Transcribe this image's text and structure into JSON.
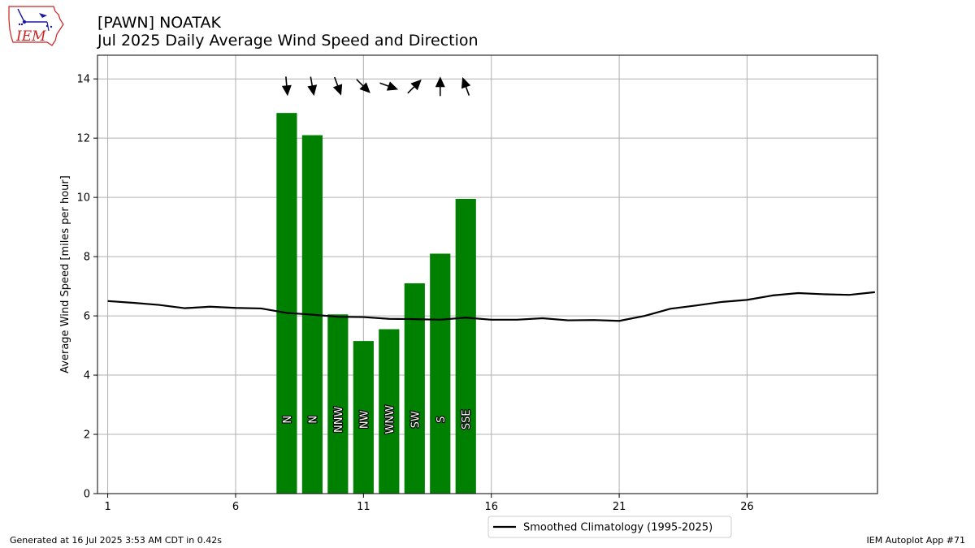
{
  "header": {
    "title_line1": "[PAWN] NOATAK",
    "title_line2": "Jul 2025 Daily Average Wind Speed and Direction"
  },
  "logo": {
    "text": "IEM"
  },
  "footer": {
    "generated": "Generated at 16 Jul 2025 3:53 AM CDT in 0.42s",
    "app": "IEM Autoplot App #71"
  },
  "colors": {
    "bar": "#008000",
    "climatology_line": "#000000",
    "grid": "#b0b0b0",
    "logo_red": "#cc2222",
    "logo_blue": "#1a1aa6"
  },
  "chart_data": {
    "type": "bar",
    "ylabel": "Average Wind Speed [miles per hour]",
    "xlabel": "",
    "xlim": [
      0.6,
      31.1
    ],
    "ylim": [
      0,
      14.8
    ],
    "x_ticks": [
      1,
      6,
      11,
      16,
      21,
      26
    ],
    "y_ticks": [
      0,
      2,
      4,
      6,
      8,
      10,
      12,
      14
    ],
    "grid": true,
    "legend_position": "bottom-center-below-axes",
    "bars": {
      "days": [
        8,
        9,
        10,
        11,
        12,
        13,
        14,
        15
      ],
      "speeds": [
        12.85,
        12.1,
        6.05,
        5.15,
        5.55,
        7.1,
        8.1,
        9.95
      ],
      "directions": [
        "N",
        "N",
        "NNW",
        "NW",
        "WNW",
        "SW",
        "S",
        "SSE"
      ],
      "direction_degrees": [
        355,
        350,
        340,
        315,
        290,
        225,
        180,
        160
      ]
    },
    "series": [
      {
        "name": "Smoothed Climatology (1995-2025)",
        "x": [
          1,
          2,
          3,
          4,
          5,
          6,
          7,
          8,
          9,
          10,
          11,
          12,
          13,
          14,
          15,
          16,
          17,
          18,
          19,
          20,
          21,
          22,
          23,
          24,
          25,
          26,
          27,
          28,
          29,
          30,
          31
        ],
        "y": [
          6.5,
          6.44,
          6.37,
          6.26,
          6.31,
          6.27,
          6.25,
          6.1,
          6.04,
          5.97,
          5.96,
          5.9,
          5.89,
          5.87,
          5.94,
          5.87,
          5.87,
          5.92,
          5.85,
          5.86,
          5.83,
          6.0,
          6.24,
          6.35,
          6.47,
          6.54,
          6.69,
          6.77,
          6.73,
          6.71,
          6.8
        ]
      }
    ]
  }
}
